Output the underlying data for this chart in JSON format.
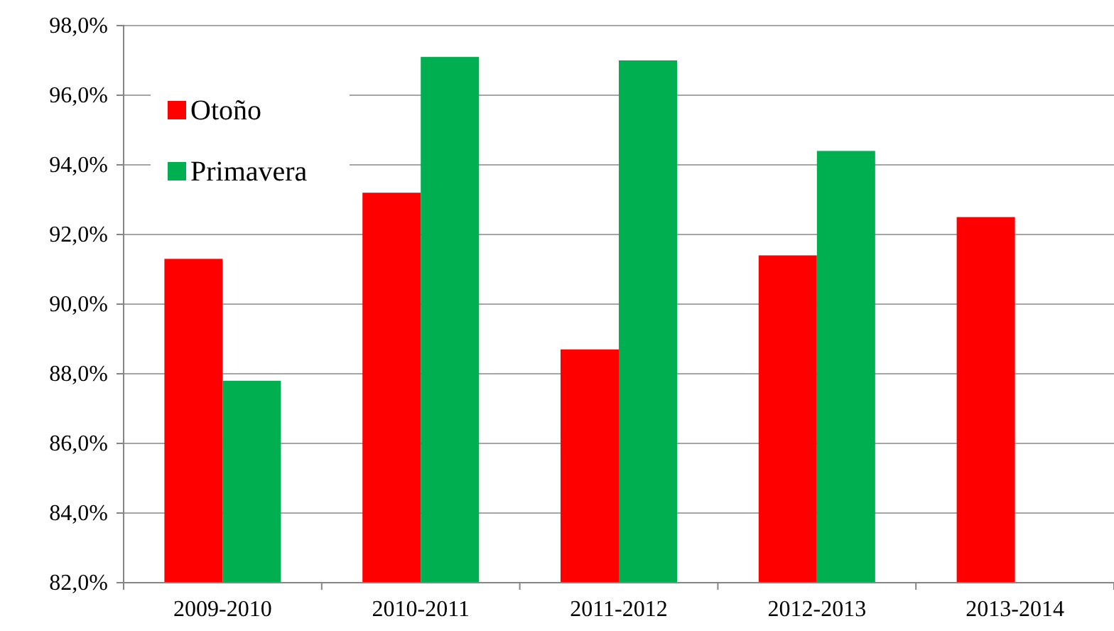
{
  "chart_data": {
    "type": "bar",
    "categories": [
      "2009-2010",
      "2010-2011",
      "2011-2012",
      "2012-2013",
      "2013-2014"
    ],
    "series": [
      {
        "name": "Otoño",
        "color": "#ff0000",
        "values": [
          91.3,
          93.2,
          88.7,
          91.4,
          92.5
        ]
      },
      {
        "name": "Primavera",
        "color": "#00b050",
        "values": [
          87.8,
          97.1,
          97.0,
          94.4,
          null
        ]
      }
    ],
    "ylim": [
      82,
      98
    ],
    "yticks": [
      {
        "value": 82,
        "label": "82,0%"
      },
      {
        "value": 84,
        "label": "84,0%"
      },
      {
        "value": 86,
        "label": "86,0%"
      },
      {
        "value": 88,
        "label": "88,0%"
      },
      {
        "value": 90,
        "label": "90,0%"
      },
      {
        "value": 92,
        "label": "92,0%"
      },
      {
        "value": 94,
        "label": "94,0%"
      },
      {
        "value": 96,
        "label": "96,0%"
      },
      {
        "value": 98,
        "label": "98,0%"
      }
    ],
    "grid": "y",
    "legend": "top left"
  }
}
